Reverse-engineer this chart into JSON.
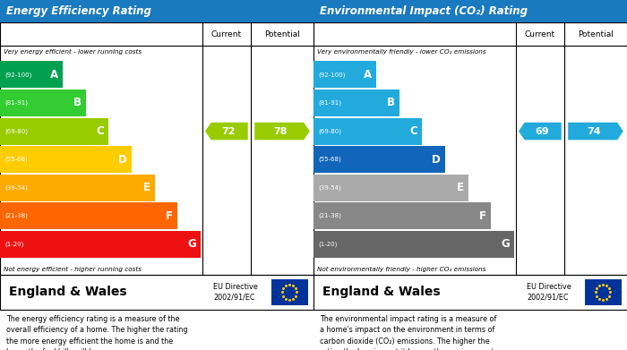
{
  "left_title": "Energy Efficiency Rating",
  "right_title": "Environmental Impact (CO₂) Rating",
  "header_bg": "#1a7abf",
  "header_text_color": "#ffffff",
  "left_top_note": "Very energy efficient - lower running costs",
  "left_bottom_note": "Not energy efficient - higher running costs",
  "right_top_note": "Very environmentally friendly - lower CO₂ emissions",
  "right_bottom_note": "Not environmentally friendly - higher CO₂ emissions",
  "bands": [
    "A",
    "B",
    "C",
    "D",
    "E",
    "F",
    "G"
  ],
  "ranges": [
    "(92-100)",
    "(81-91)",
    "(69-80)",
    "(55-68)",
    "(39-54)",
    "(21-38)",
    "(1-20)"
  ],
  "energy_colors": [
    "#00a050",
    "#33cc33",
    "#99cc00",
    "#ffcc00",
    "#ffaa00",
    "#ff6600",
    "#ee1111"
  ],
  "co2_colors": [
    "#22aadd",
    "#22aadd",
    "#22aadd",
    "#1166bb",
    "#aaaaaa",
    "#888888",
    "#666666"
  ],
  "current_energy": 72,
  "potential_energy": 78,
  "current_co2": 69,
  "potential_co2": 74,
  "current_energy_arrow_color": "#99cc00",
  "potential_energy_arrow_color": "#99cc00",
  "current_co2_arrow_color": "#22aadd",
  "potential_co2_arrow_color": "#22aadd",
  "footer_text_left": "England & Wales",
  "footer_text_right": "EU Directive\n2002/91/EC",
  "eu_flag_color": "#003399",
  "eu_star_color": "#ffcc00",
  "desc_left": "The energy efficiency rating is a measure of the\noverall efficiency of a home. The higher the rating\nthe more energy efficient the home is and the\nlower the fuel bills will be.",
  "desc_right": "The environmental impact rating is a measure of\na home's impact on the environment in terms of\ncarbon dioxide (CO₂) emissions. The higher the\nrating the less impact it has on the environment."
}
